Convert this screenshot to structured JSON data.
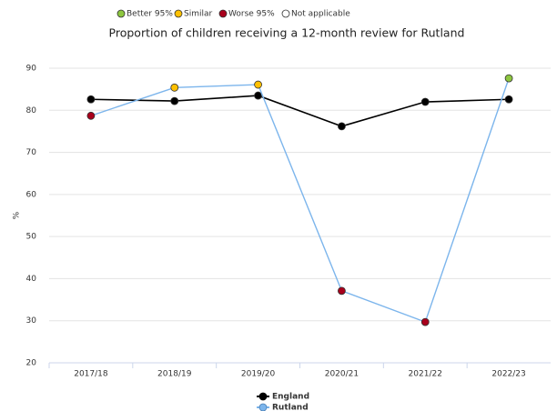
{
  "chart_data": {
    "type": "line",
    "title": "Proportion of children receiving a 12-month review for Rutland",
    "y_label": "%",
    "categories": [
      "2017/18",
      "2018/19",
      "2019/20",
      "2020/21",
      "2021/22",
      "2022/23"
    ],
    "series": [
      {
        "name": "England",
        "color": "#000000",
        "values": [
          82.6,
          82.2,
          83.5,
          76.2,
          82.0,
          82.6
        ]
      },
      {
        "name": "Rutland",
        "color": "#7cb5ec",
        "values": [
          78.7,
          85.4,
          86.1,
          37.1,
          29.7,
          87.6
        ],
        "point_colors": [
          "#a8001c",
          "#ffc000",
          "#ffc000",
          "#a8001c",
          "#a8001c",
          "#8dc63f"
        ]
      }
    ],
    "significance_legend": [
      {
        "name": "Better 95%",
        "color": "#8dc63f"
      },
      {
        "name": "Similar",
        "color": "#ffc000"
      },
      {
        "name": "Worse 95%",
        "color": "#a8001c"
      },
      {
        "name": "Not applicable",
        "color": "#ffffff"
      }
    ],
    "ylim": [
      20,
      90
    ],
    "yticks": [
      20,
      30,
      40,
      50,
      60,
      70,
      80,
      90
    ],
    "grid": true
  }
}
